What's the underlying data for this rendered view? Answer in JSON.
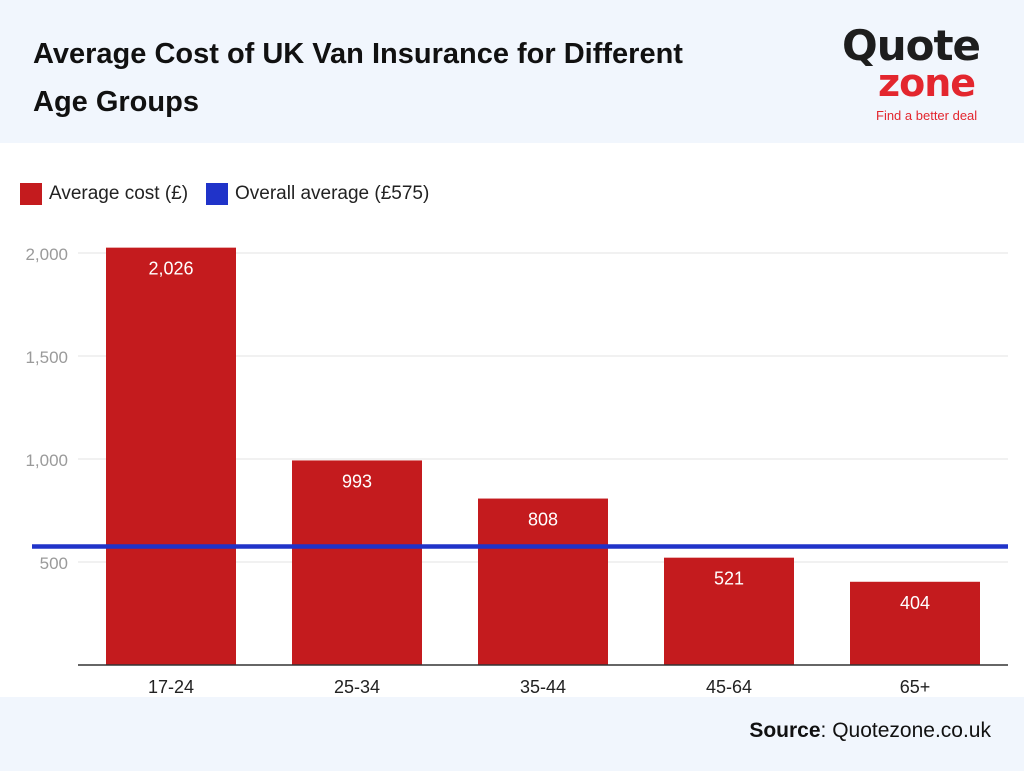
{
  "header": {
    "title": "Average Cost of UK Van Insurance for Different Age Groups"
  },
  "logo": {
    "line1": "Quote",
    "line2": "zone",
    "tagline": "Find a better deal",
    "colors": {
      "dark": "#1d1d1d",
      "accent": "#e3262e"
    }
  },
  "legend": {
    "items": [
      {
        "label": "Average cost (£)",
        "color": "#c41b1e"
      },
      {
        "label": "Overall average (£575)",
        "color": "#2033c9"
      }
    ]
  },
  "chart_data": {
    "type": "bar",
    "categories": [
      "17-24",
      "25-34",
      "35-44",
      "45-64",
      "65+"
    ],
    "series": [
      {
        "name": "Average cost (£)",
        "values": [
          2026,
          993,
          808,
          521,
          404
        ],
        "color": "#c41b1e"
      }
    ],
    "reference_line": {
      "name": "Overall average (£575)",
      "value": 575,
      "color": "#2033c9"
    },
    "data_labels": [
      "2,026",
      "993",
      "808",
      "521",
      "404"
    ],
    "y_ticks": [
      500,
      1000,
      1500,
      2000
    ],
    "y_tick_labels": [
      "500",
      "1,000",
      "1,500",
      "2,000"
    ],
    "ylim": [
      0,
      2000
    ],
    "title": "",
    "xlabel": "",
    "ylabel": "",
    "grid": true,
    "legend_position": "top-left"
  },
  "footer": {
    "source_label": "Source",
    "source_text": ": Quotezone.co.uk"
  }
}
